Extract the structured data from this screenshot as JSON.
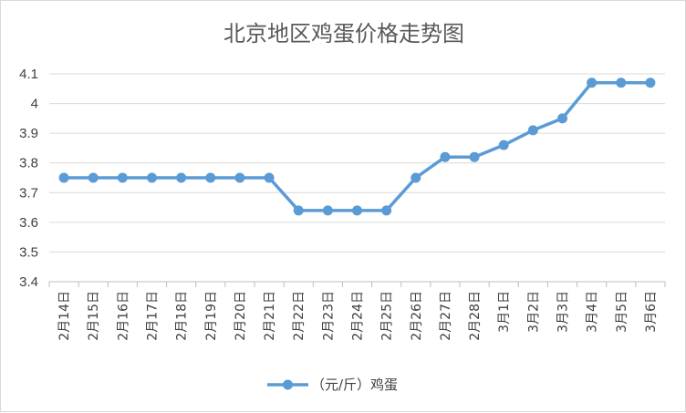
{
  "chart_data": {
    "type": "line",
    "title": "北京地区鸡蛋价格走势图",
    "xlabel": "",
    "ylabel": "",
    "ylim": [
      3.4,
      4.1
    ],
    "yticks": [
      "3.4",
      "3.5",
      "3.6",
      "3.7",
      "3.8",
      "3.9",
      "4",
      "4.1"
    ],
    "grid": true,
    "legend_position": "bottom",
    "color": "#5b9bd5",
    "categories": [
      "2月14日",
      "2月15日",
      "2月16日",
      "2月17日",
      "2月18日",
      "2月19日",
      "2月20日",
      "2月21日",
      "2月22日",
      "2月23日",
      "2月24日",
      "2月25日",
      "2月26日",
      "2月27日",
      "2月28日",
      "3月1日",
      "3月2日",
      "3月3日",
      "3月4日",
      "3月5日",
      "3月6日"
    ],
    "series": [
      {
        "name": "（元/斤）鸡蛋",
        "values": [
          3.75,
          3.75,
          3.75,
          3.75,
          3.75,
          3.75,
          3.75,
          3.75,
          3.64,
          3.64,
          3.64,
          3.64,
          3.75,
          3.82,
          3.82,
          3.86,
          3.91,
          3.95,
          4.07,
          4.07,
          4.07
        ]
      }
    ]
  }
}
